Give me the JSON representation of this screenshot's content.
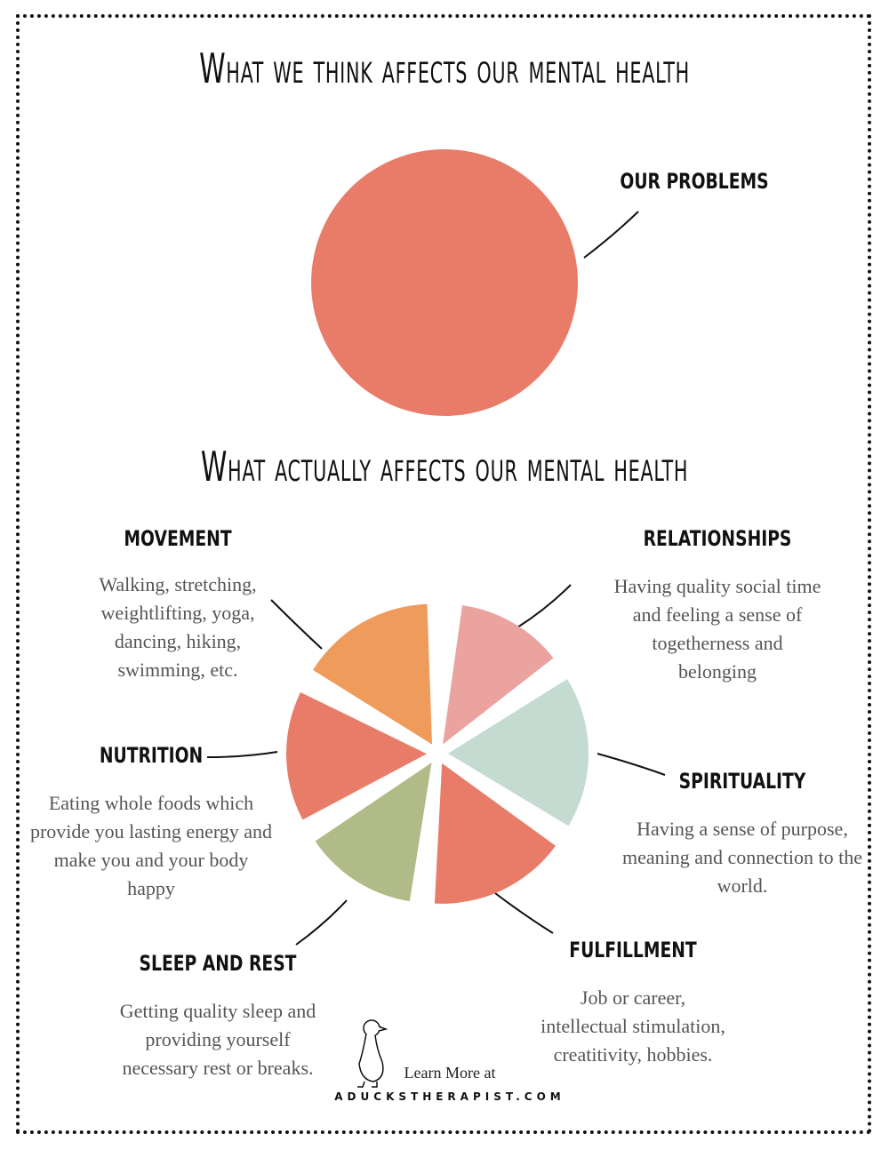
{
  "header": {
    "title": "What we think affects our mental health"
  },
  "problems": {
    "label": "OUR PROBLEMS"
  },
  "subheader": {
    "title": "What actually affects our mental health"
  },
  "factors": [
    {
      "heading": "MOVEMENT",
      "lines": [
        "Walking, stretching,",
        "weightlifting, yoga,",
        "dancing, hiking,",
        "swimming, etc."
      ]
    },
    {
      "heading": "RELATIONSHIPS",
      "lines": [
        "Having quality social time",
        "and feeling a sense of",
        "togetherness and",
        "belonging"
      ]
    },
    {
      "heading": "NUTRITION",
      "lines": [
        "Eating whole foods which",
        "provide you lasting energy and",
        "make you and your body",
        "happy"
      ]
    },
    {
      "heading": "SPIRITUALITY",
      "lines": [
        "Having a sense of purpose,",
        "meaning and connection to the",
        "world."
      ]
    },
    {
      "heading": "SLEEP AND REST",
      "lines": [
        "Getting quality sleep and",
        "providing yourself",
        "necessary rest or breaks."
      ]
    },
    {
      "heading": "FULFILLMENT",
      "lines": [
        "Job or career,",
        "intellectual stimulation,",
        "creatitivity, hobbies."
      ]
    }
  ],
  "footer": {
    "learn": "Learn More at",
    "site": "ADUCKSTHERAPIST.COM"
  }
}
